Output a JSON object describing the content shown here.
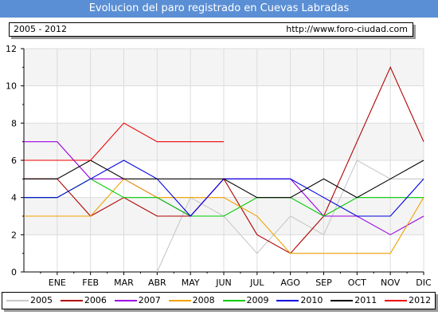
{
  "header": {
    "title": "Evolucion del paro registrado en Cuevas Labradas",
    "period": "2005 - 2012",
    "url": "http://www.foro-ciudad.com"
  },
  "chart_data": {
    "type": "line",
    "title": "Evolucion del paro registrado en Cuevas Labradas",
    "xlabel": "",
    "ylabel": "",
    "categories": [
      "ENE",
      "FEB",
      "MAR",
      "ABR",
      "MAY",
      "JUN",
      "JUL",
      "AGO",
      "SEP",
      "OCT",
      "NOV",
      "DIC"
    ],
    "yticks": [
      0,
      2,
      4,
      6,
      8,
      10,
      12
    ],
    "ylim": [
      0,
      12
    ],
    "grid": true,
    "legend_position": "bottom",
    "series": [
      {
        "name": "2005",
        "color": "#c8c8c8",
        "values": [
          null,
          null,
          null,
          0,
          4,
          3,
          1,
          3,
          2,
          6,
          5,
          5
        ]
      },
      {
        "name": "2006",
        "color": "#b00000",
        "values": [
          5,
          3,
          4,
          3,
          3,
          5,
          2,
          1,
          3,
          7,
          11,
          7
        ]
      },
      {
        "name": "2007",
        "color": "#9b00e0",
        "values": [
          7,
          5,
          5,
          4,
          3,
          5,
          5,
          5,
          3,
          3,
          2,
          3
        ]
      },
      {
        "name": "2008",
        "color": "#f0a000",
        "values": [
          3,
          3,
          5,
          4,
          4,
          4,
          3,
          1,
          1,
          1,
          1,
          4
        ]
      },
      {
        "name": "2009",
        "color": "#00cc00",
        "values": [
          4,
          5,
          4,
          4,
          3,
          3,
          4,
          4,
          3,
          4,
          4,
          4
        ]
      },
      {
        "name": "2010",
        "color": "#0000e0",
        "values": [
          4,
          5,
          6,
          5,
          3,
          5,
          5,
          5,
          4,
          3,
          3,
          5
        ]
      },
      {
        "name": "2011",
        "color": "#000000",
        "values": [
          5,
          6,
          5,
          5,
          5,
          5,
          4,
          4,
          5,
          4,
          5,
          6
        ]
      },
      {
        "name": "2012",
        "color": "#ee0000",
        "values": [
          6,
          6,
          8,
          7,
          7,
          7,
          null,
          null,
          null,
          null,
          null,
          null
        ]
      }
    ]
  }
}
